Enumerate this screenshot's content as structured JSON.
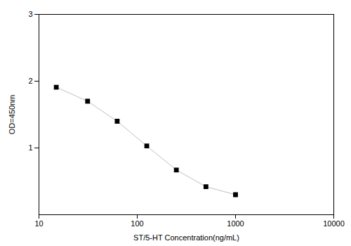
{
  "chart_data": {
    "type": "line",
    "x": [
      15,
      31.25,
      62.5,
      125,
      250,
      500,
      1000
    ],
    "values": [
      1.91,
      1.7,
      1.4,
      1.03,
      0.67,
      0.42,
      0.3
    ],
    "xlabel": "ST/5-HT Concentration(ng/mL)",
    "ylabel": "OD=450nm",
    "log": "x",
    "xlim": [
      10,
      10000
    ],
    "ylim": [
      0,
      3
    ],
    "xticks": [
      10,
      100,
      1000,
      10000
    ],
    "yticks": [
      1,
      2,
      3
    ],
    "color": "#c0c0c0",
    "marker": "square",
    "grid": false
  }
}
